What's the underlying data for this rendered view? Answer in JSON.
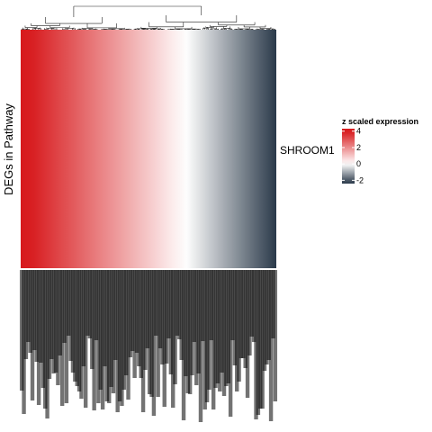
{
  "chart_data": {
    "type": "heatmap",
    "title": "",
    "ylabel": "DEGs in Pathway",
    "row_labels": [
      "SHROOM1"
    ],
    "column_labels": [],
    "n_columns_approx": 120,
    "value_range_left_to_right": [
      4.2,
      -2.3
    ],
    "dendrogram": "columns, top",
    "legend": {
      "title": "z scaled expression",
      "ticks": [
        4,
        2,
        0,
        -2
      ],
      "placement": "right",
      "colors": {
        "high": "#d7191c",
        "mid": "#ffffff",
        "low": "#2b3a4a"
      }
    }
  }
}
